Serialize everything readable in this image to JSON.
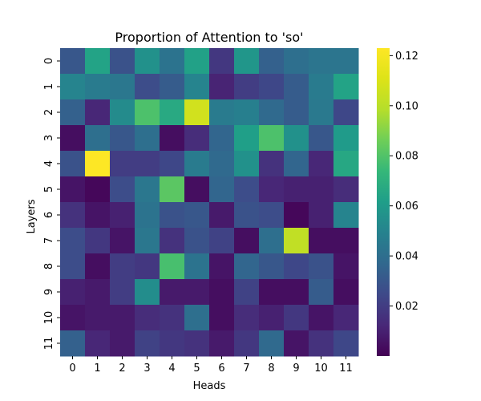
{
  "chart_data": {
    "type": "heatmap",
    "title": "Proportion of Attention to 'so'",
    "xlabel": "Heads",
    "ylabel": "Layers",
    "x_categories": [
      "0",
      "1",
      "2",
      "3",
      "4",
      "5",
      "6",
      "7",
      "8",
      "9",
      "10",
      "11"
    ],
    "y_categories": [
      "0",
      "1",
      "2",
      "3",
      "4",
      "5",
      "6",
      "7",
      "8",
      "9",
      "10",
      "11"
    ],
    "colormap": "viridis",
    "vmin": 0.0,
    "vmax": 0.123,
    "colorbar_ticks": [
      0.02,
      0.04,
      0.06,
      0.08,
      0.1,
      0.12
    ],
    "colorbar_tick_labels": [
      "0.02",
      "0.04",
      "0.06",
      "0.08",
      "0.10",
      "0.12"
    ],
    "grid": false,
    "values": [
      [
        0.03,
        0.064,
        0.028,
        0.056,
        0.042,
        0.063,
        0.018,
        0.058,
        0.034,
        0.04,
        0.043,
        0.043
      ],
      [
        0.05,
        0.046,
        0.044,
        0.026,
        0.032,
        0.05,
        0.011,
        0.02,
        0.024,
        0.032,
        0.046,
        0.064
      ],
      [
        0.034,
        0.012,
        0.053,
        0.079,
        0.067,
        0.107,
        0.046,
        0.048,
        0.038,
        0.032,
        0.045,
        0.024
      ],
      [
        0.004,
        0.04,
        0.03,
        0.04,
        0.004,
        0.014,
        0.036,
        0.062,
        0.079,
        0.056,
        0.03,
        0.06
      ],
      [
        0.028,
        0.123,
        0.02,
        0.02,
        0.024,
        0.046,
        0.038,
        0.056,
        0.016,
        0.036,
        0.012,
        0.066
      ],
      [
        0.006,
        0.002,
        0.026,
        0.044,
        0.082,
        0.004,
        0.036,
        0.026,
        0.012,
        0.01,
        0.01,
        0.014
      ],
      [
        0.016,
        0.006,
        0.01,
        0.042,
        0.028,
        0.03,
        0.008,
        0.028,
        0.026,
        0.002,
        0.01,
        0.05
      ],
      [
        0.026,
        0.018,
        0.006,
        0.044,
        0.016,
        0.028,
        0.022,
        0.004,
        0.04,
        0.102,
        0.004,
        0.004
      ],
      [
        0.026,
        0.004,
        0.02,
        0.018,
        0.078,
        0.042,
        0.006,
        0.036,
        0.03,
        0.024,
        0.028,
        0.006
      ],
      [
        0.01,
        0.008,
        0.02,
        0.054,
        0.008,
        0.008,
        0.004,
        0.022,
        0.004,
        0.004,
        0.032,
        0.004
      ],
      [
        0.006,
        0.008,
        0.008,
        0.014,
        0.016,
        0.04,
        0.004,
        0.014,
        0.01,
        0.018,
        0.006,
        0.012
      ],
      [
        0.034,
        0.012,
        0.008,
        0.022,
        0.018,
        0.016,
        0.008,
        0.018,
        0.038,
        0.006,
        0.016,
        0.024
      ]
    ]
  }
}
